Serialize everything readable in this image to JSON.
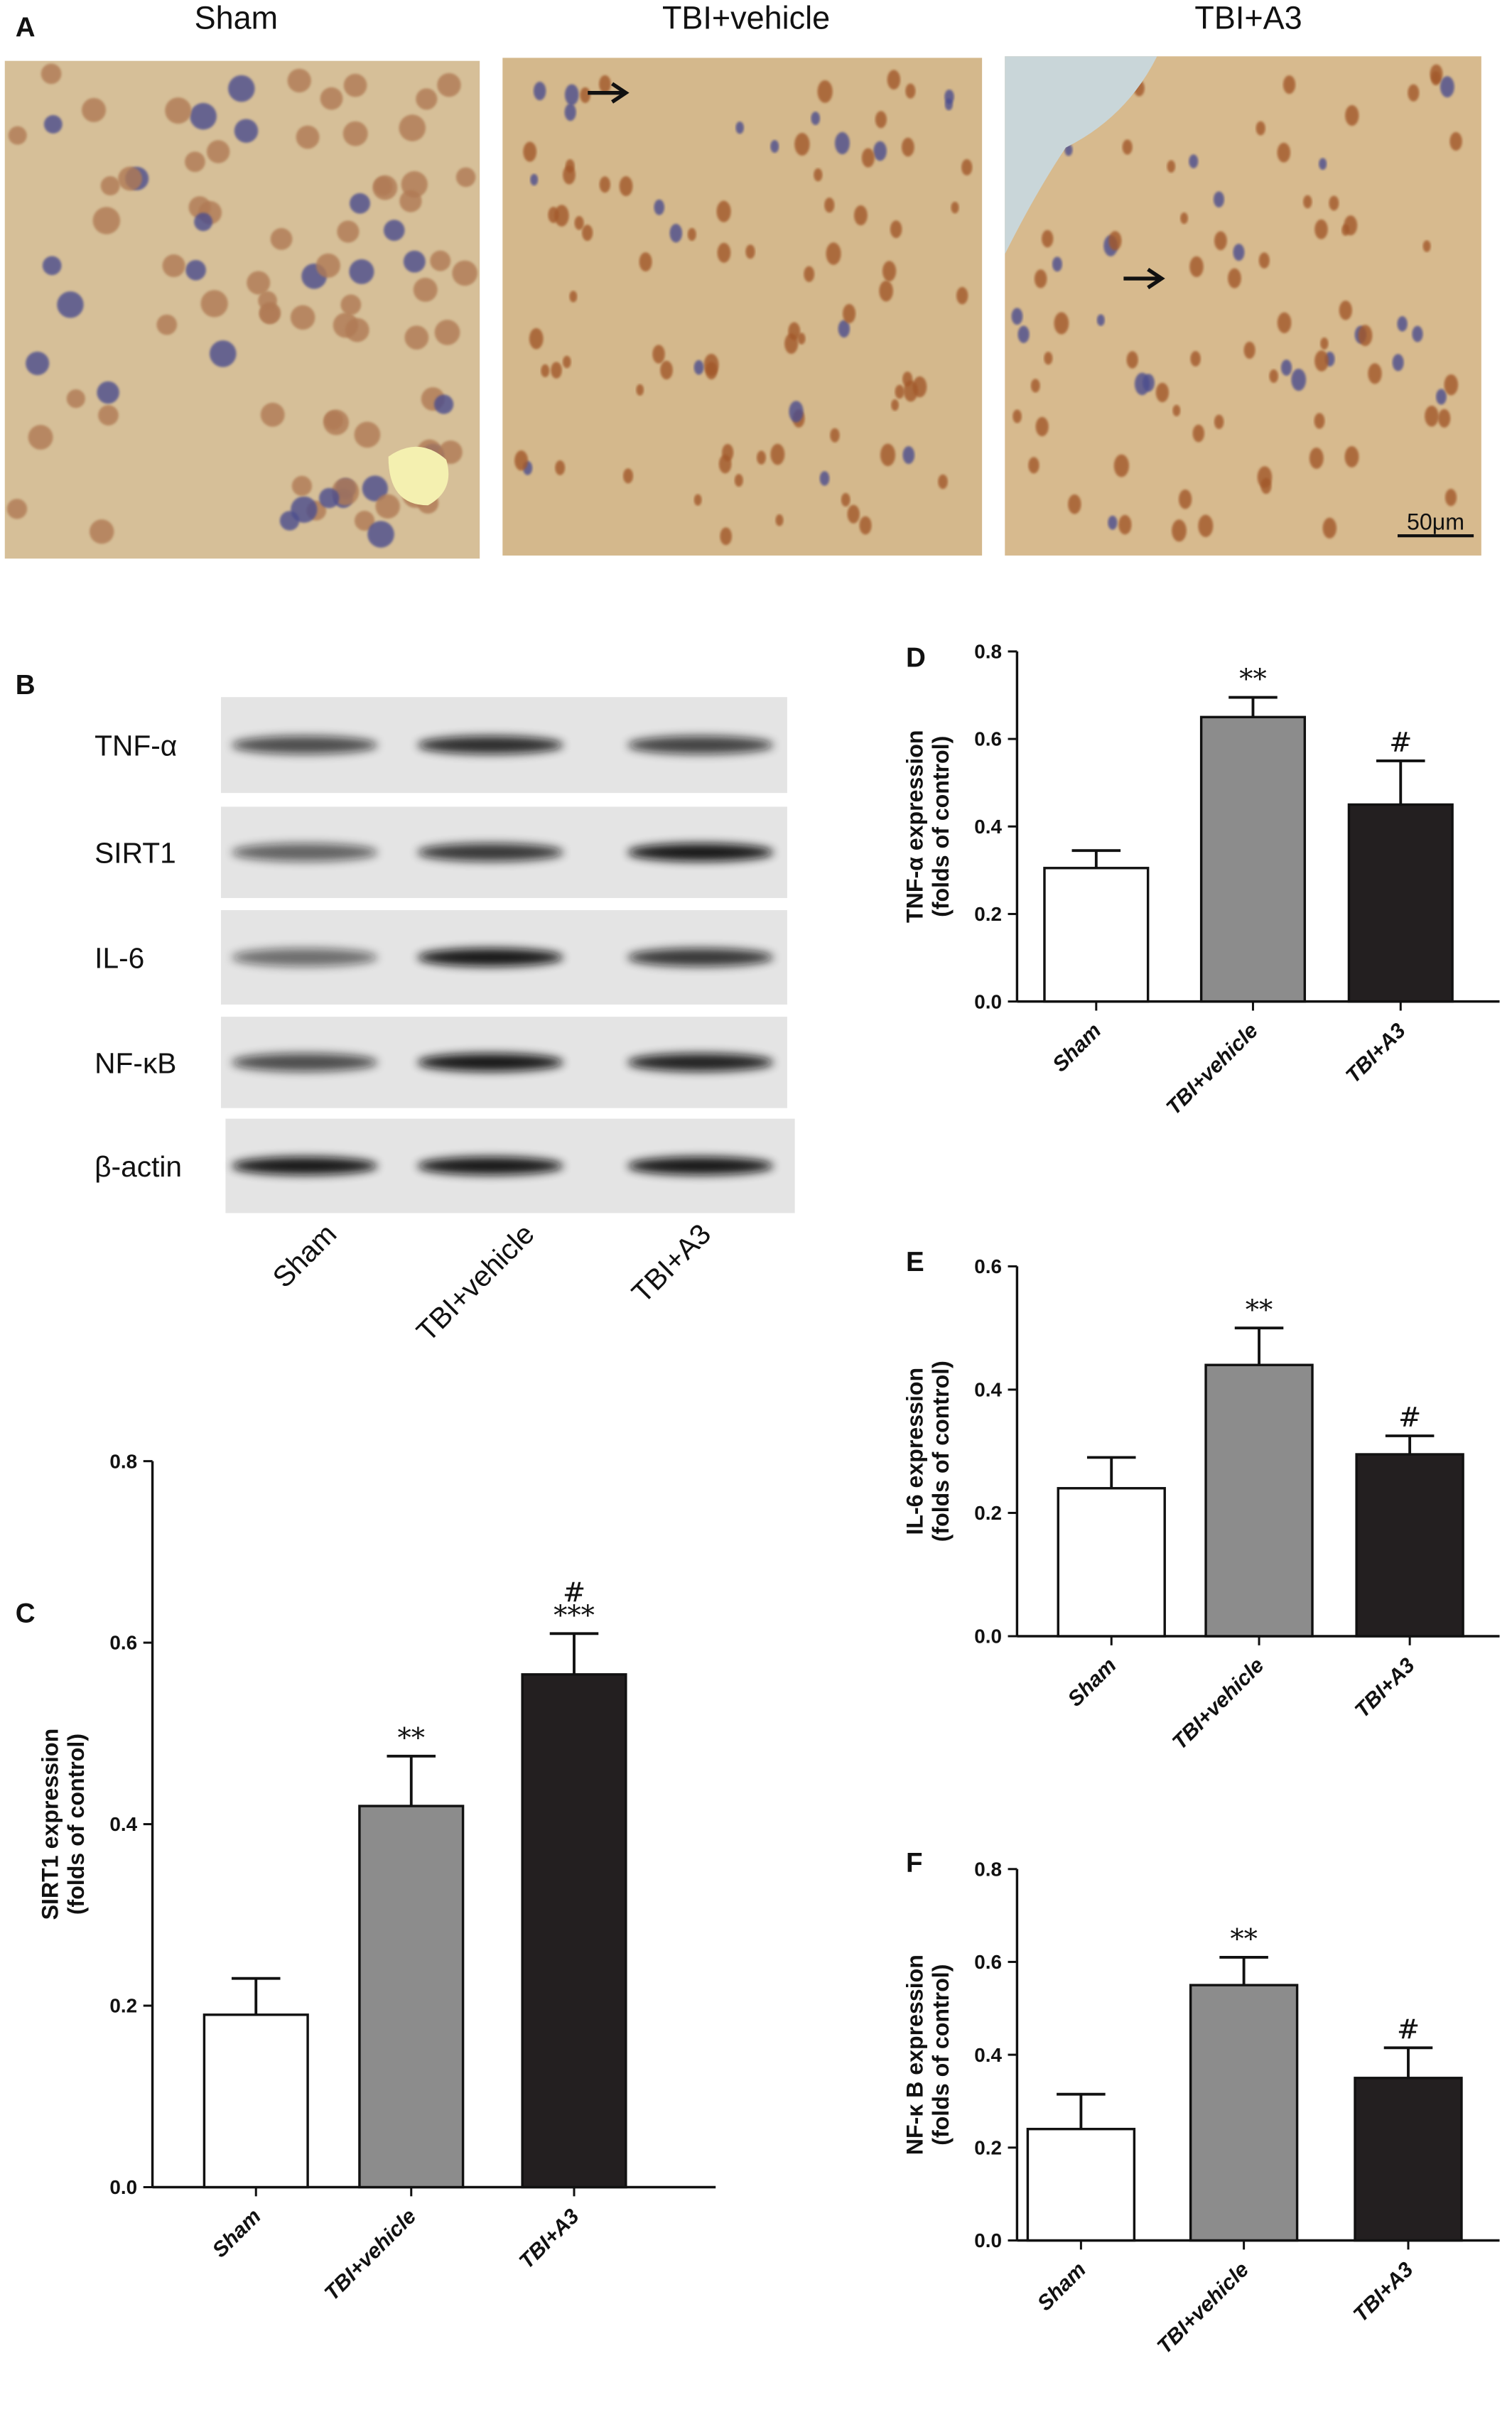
{
  "panel_a": {
    "label": "A",
    "titles": [
      "Sham",
      "TBI+vehicle",
      "TBI+A3"
    ],
    "scale_bar": "50μm"
  },
  "panel_b": {
    "label": "B",
    "rows": [
      "TNF-α",
      "SIRT1",
      "IL-6",
      "NF-κB",
      "β-actin"
    ],
    "columns": [
      "Sham",
      "TBI+vehicle",
      "TBI+A3"
    ]
  },
  "chart_data": [
    {
      "type": "bar",
      "label": "C",
      "ylabel": [
        "SIRT1 expression",
        "(folds of control)"
      ],
      "categories": [
        "Sham",
        "TBI+vehicle",
        "TBI+A3"
      ],
      "values": [
        0.19,
        0.42,
        0.565
      ],
      "errors": [
        0.04,
        0.055,
        0.045
      ],
      "annotations": [
        [],
        [
          "**"
        ],
        [
          "#",
          "***"
        ]
      ],
      "colors": [
        "#ffffff",
        "#8c8c8c",
        "#231f20"
      ],
      "ylim": [
        0,
        0.8
      ],
      "yticks": [
        {
          "value": 0,
          "label": "0.0"
        },
        0.2,
        0.4,
        0.6,
        0.8
      ]
    },
    {
      "type": "bar",
      "label": "D",
      "ylabel": [
        "TNF-α  expression",
        "(folds of control)"
      ],
      "categories": [
        "Sham",
        "TBI+vehicle",
        "TBI+A3"
      ],
      "values": [
        0.305,
        0.65,
        0.45
      ],
      "errors": [
        0.04,
        0.045,
        0.1
      ],
      "annotations": [
        [],
        [
          "**"
        ],
        [
          "#"
        ]
      ],
      "colors": [
        "#ffffff",
        "#8c8c8c",
        "#231f20"
      ],
      "ylim": [
        0,
        0.8
      ],
      "yticks": [
        {
          "value": 0,
          "label": "0.0"
        },
        0.2,
        0.4,
        0.6,
        0.8
      ]
    },
    {
      "type": "bar",
      "label": "E",
      "ylabel": [
        "IL-6 expression",
        "(folds of control)"
      ],
      "categories": [
        "Sham",
        "TBI+vehicle",
        "TBI+A3"
      ],
      "values": [
        0.24,
        0.44,
        0.295
      ],
      "errors": [
        0.05,
        0.06,
        0.03
      ],
      "annotations": [
        [],
        [
          "**"
        ],
        [
          "#"
        ]
      ],
      "colors": [
        "#ffffff",
        "#8c8c8c",
        "#231f20"
      ],
      "ylim": [
        0,
        0.6
      ],
      "yticks": [
        {
          "value": 0,
          "label": "0.0"
        },
        0.2,
        0.4,
        0.6
      ]
    },
    {
      "type": "bar",
      "label": "F",
      "ylabel": [
        "NF-κ  B expression",
        "(folds of control)"
      ],
      "categories": [
        "Sham",
        "TBI+vehicle",
        "TBI+A3"
      ],
      "values": [
        0.24,
        0.55,
        0.35
      ],
      "errors": [
        0.075,
        0.06,
        0.065
      ],
      "annotations": [
        [],
        [
          "**"
        ],
        [
          "#"
        ]
      ],
      "colors": [
        "#ffffff",
        "#8c8c8c",
        "#231f20"
      ],
      "ylim": [
        0,
        0.8
      ],
      "yticks": [
        {
          "value": 0,
          "label": "0.0"
        },
        0.2,
        0.4,
        0.6,
        0.8
      ]
    }
  ]
}
